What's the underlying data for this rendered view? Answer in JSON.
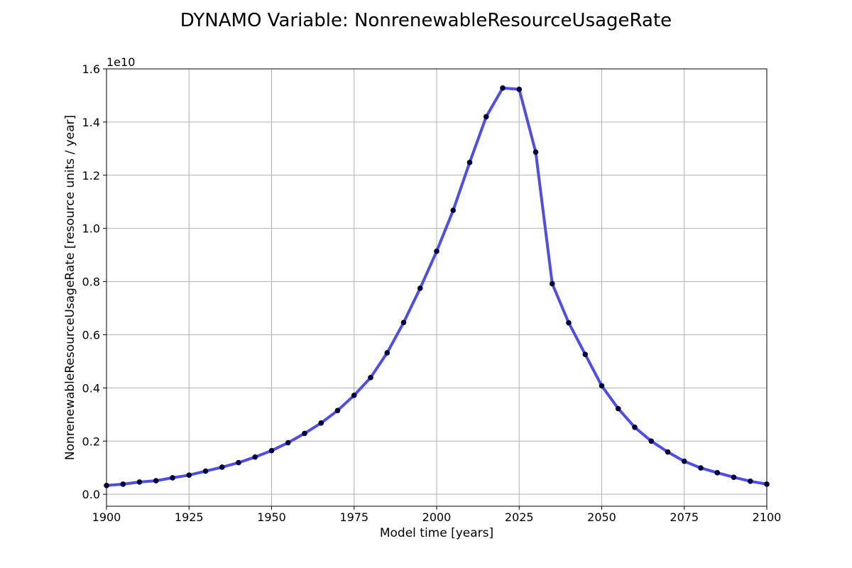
{
  "chart_data": {
    "type": "line",
    "title": "DYNAMO Variable: NonrenewableResourceUsageRate",
    "xlabel": "Model time [years]",
    "ylabel": "NonrenewableResourceUsageRate [resource units / year]",
    "y_offset_label": "1e10",
    "xlim": [
      1900,
      2100
    ],
    "ylim": [
      -0.045,
      1.6
    ],
    "x_ticks": [
      1900,
      1925,
      1950,
      1975,
      2000,
      2025,
      2050,
      2075,
      2100
    ],
    "x_tick_labels": [
      "1900",
      "1925",
      "1950",
      "1975",
      "2000",
      "2025",
      "2050",
      "2075",
      "2100"
    ],
    "y_ticks": [
      0.0,
      0.2,
      0.4,
      0.6,
      0.8,
      1.0,
      1.2,
      1.4,
      1.6
    ],
    "y_tick_labels": [
      "0.0",
      "0.2",
      "0.4",
      "0.6",
      "0.8",
      "1.0",
      "1.2",
      "1.4",
      "1.6"
    ],
    "grid": true,
    "line_color": "#4d4dee",
    "marker_color": "#00003a",
    "series": [
      {
        "x": [
          1900,
          1905,
          1910,
          1915,
          1920,
          1925,
          1930,
          1935,
          1940,
          1945,
          1950,
          1955,
          1960,
          1965,
          1970,
          1975,
          1980,
          1985,
          1990,
          1995,
          2000,
          2005,
          2010,
          2015,
          2020,
          2025,
          2030,
          2035,
          2040,
          2045,
          2050,
          2055,
          2060,
          2065,
          2070,
          2075,
          2080,
          2085,
          2090,
          2095,
          2100
        ],
        "values": [
          0.033,
          0.038,
          0.046,
          0.051,
          0.062,
          0.072,
          0.087,
          0.102,
          0.119,
          0.14,
          0.164,
          0.194,
          0.229,
          0.268,
          0.315,
          0.372,
          0.439,
          0.532,
          0.646,
          0.775,
          0.914,
          1.068,
          1.248,
          1.42,
          1.528,
          1.523,
          1.287,
          0.792,
          0.645,
          0.526,
          0.408,
          0.322,
          0.252,
          0.2,
          0.159,
          0.124,
          0.099,
          0.081,
          0.064,
          0.049,
          0.038
        ]
      }
    ]
  }
}
